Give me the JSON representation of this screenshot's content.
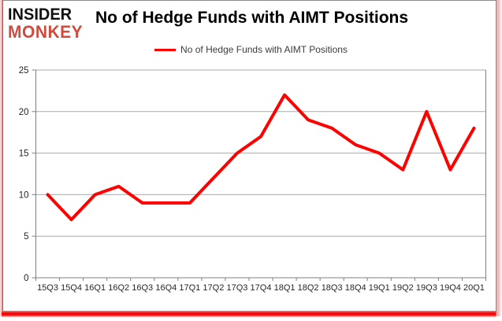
{
  "logo": {
    "line1": "INSIDER",
    "line2": "MONKEY",
    "line1_color": "#111111",
    "line2_color": "#d14b3d"
  },
  "title": "No of Hedge Funds with AIMT Positions",
  "legend": {
    "label": "No of Hedge Funds with AIMT Positions",
    "line_color": "#ff0000"
  },
  "chart_data": {
    "type": "line",
    "title": "No of Hedge Funds with AIMT Positions",
    "categories": [
      "15Q3",
      "15Q4",
      "16Q1",
      "16Q2",
      "16Q3",
      "16Q4",
      "17Q1",
      "17Q2",
      "17Q3",
      "17Q4",
      "18Q1",
      "18Q2",
      "18Q3",
      "18Q4",
      "19Q1",
      "19Q2",
      "19Q3",
      "19Q4",
      "20Q1"
    ],
    "series": [
      {
        "name": "No of Hedge Funds with AIMT Positions",
        "color": "#ff0000",
        "values": [
          10,
          7,
          10,
          11,
          9,
          9,
          9,
          12,
          15,
          17,
          22,
          19,
          18,
          16,
          15,
          13,
          20,
          13,
          18
        ]
      }
    ],
    "xlabel": "",
    "ylabel": "",
    "ylim": [
      0,
      25
    ],
    "ytick_step": 5,
    "yticks": [
      0,
      5,
      10,
      15,
      20,
      25
    ],
    "grid": true,
    "legend_position": "top-center",
    "gridline_color": "#a8a8a8",
    "axis_color": "#7f7f7f",
    "tick_label_color": "#262626"
  }
}
